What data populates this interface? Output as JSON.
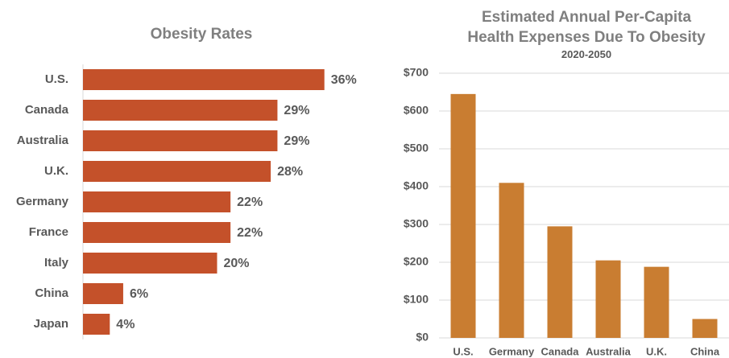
{
  "chart_data": [
    {
      "type": "bar",
      "orientation": "horizontal",
      "title": "Obesity Rates",
      "categories": [
        "U.S.",
        "Canada",
        "Australia",
        "U.K.",
        "Germany",
        "France",
        "Italy",
        "China",
        "Japan"
      ],
      "values": [
        36,
        29,
        29,
        28,
        22,
        22,
        20,
        6,
        4
      ],
      "value_labels": [
        "36%",
        "29%",
        "29%",
        "28%",
        "22%",
        "22%",
        "20%",
        "6%",
        "4%"
      ],
      "color": "#c4512a",
      "xlim": [
        0,
        40
      ]
    },
    {
      "type": "bar",
      "title": "Estimated Annual Per-Capita Health Expenses Due To Obesity",
      "subtitle": "2020-2050",
      "categories": [
        "U.S.",
        "Germany",
        "Canada",
        "Australia",
        "U.K.",
        "China"
      ],
      "values": [
        645,
        410,
        295,
        205,
        188,
        50
      ],
      "color": "#c97d31",
      "ylim": [
        0,
        700
      ],
      "yticks": [
        {
          "value": 0,
          "label": "$0"
        },
        {
          "value": 100,
          "label": "$100"
        },
        {
          "value": 200,
          "label": "$200"
        },
        {
          "value": 300,
          "label": "$300"
        },
        {
          "value": 400,
          "label": "$400"
        },
        {
          "value": 500,
          "label": "$500"
        },
        {
          "value": 600,
          "label": "$600"
        },
        {
          "value": 700,
          "label": "$700"
        }
      ],
      "grid": true
    }
  ]
}
